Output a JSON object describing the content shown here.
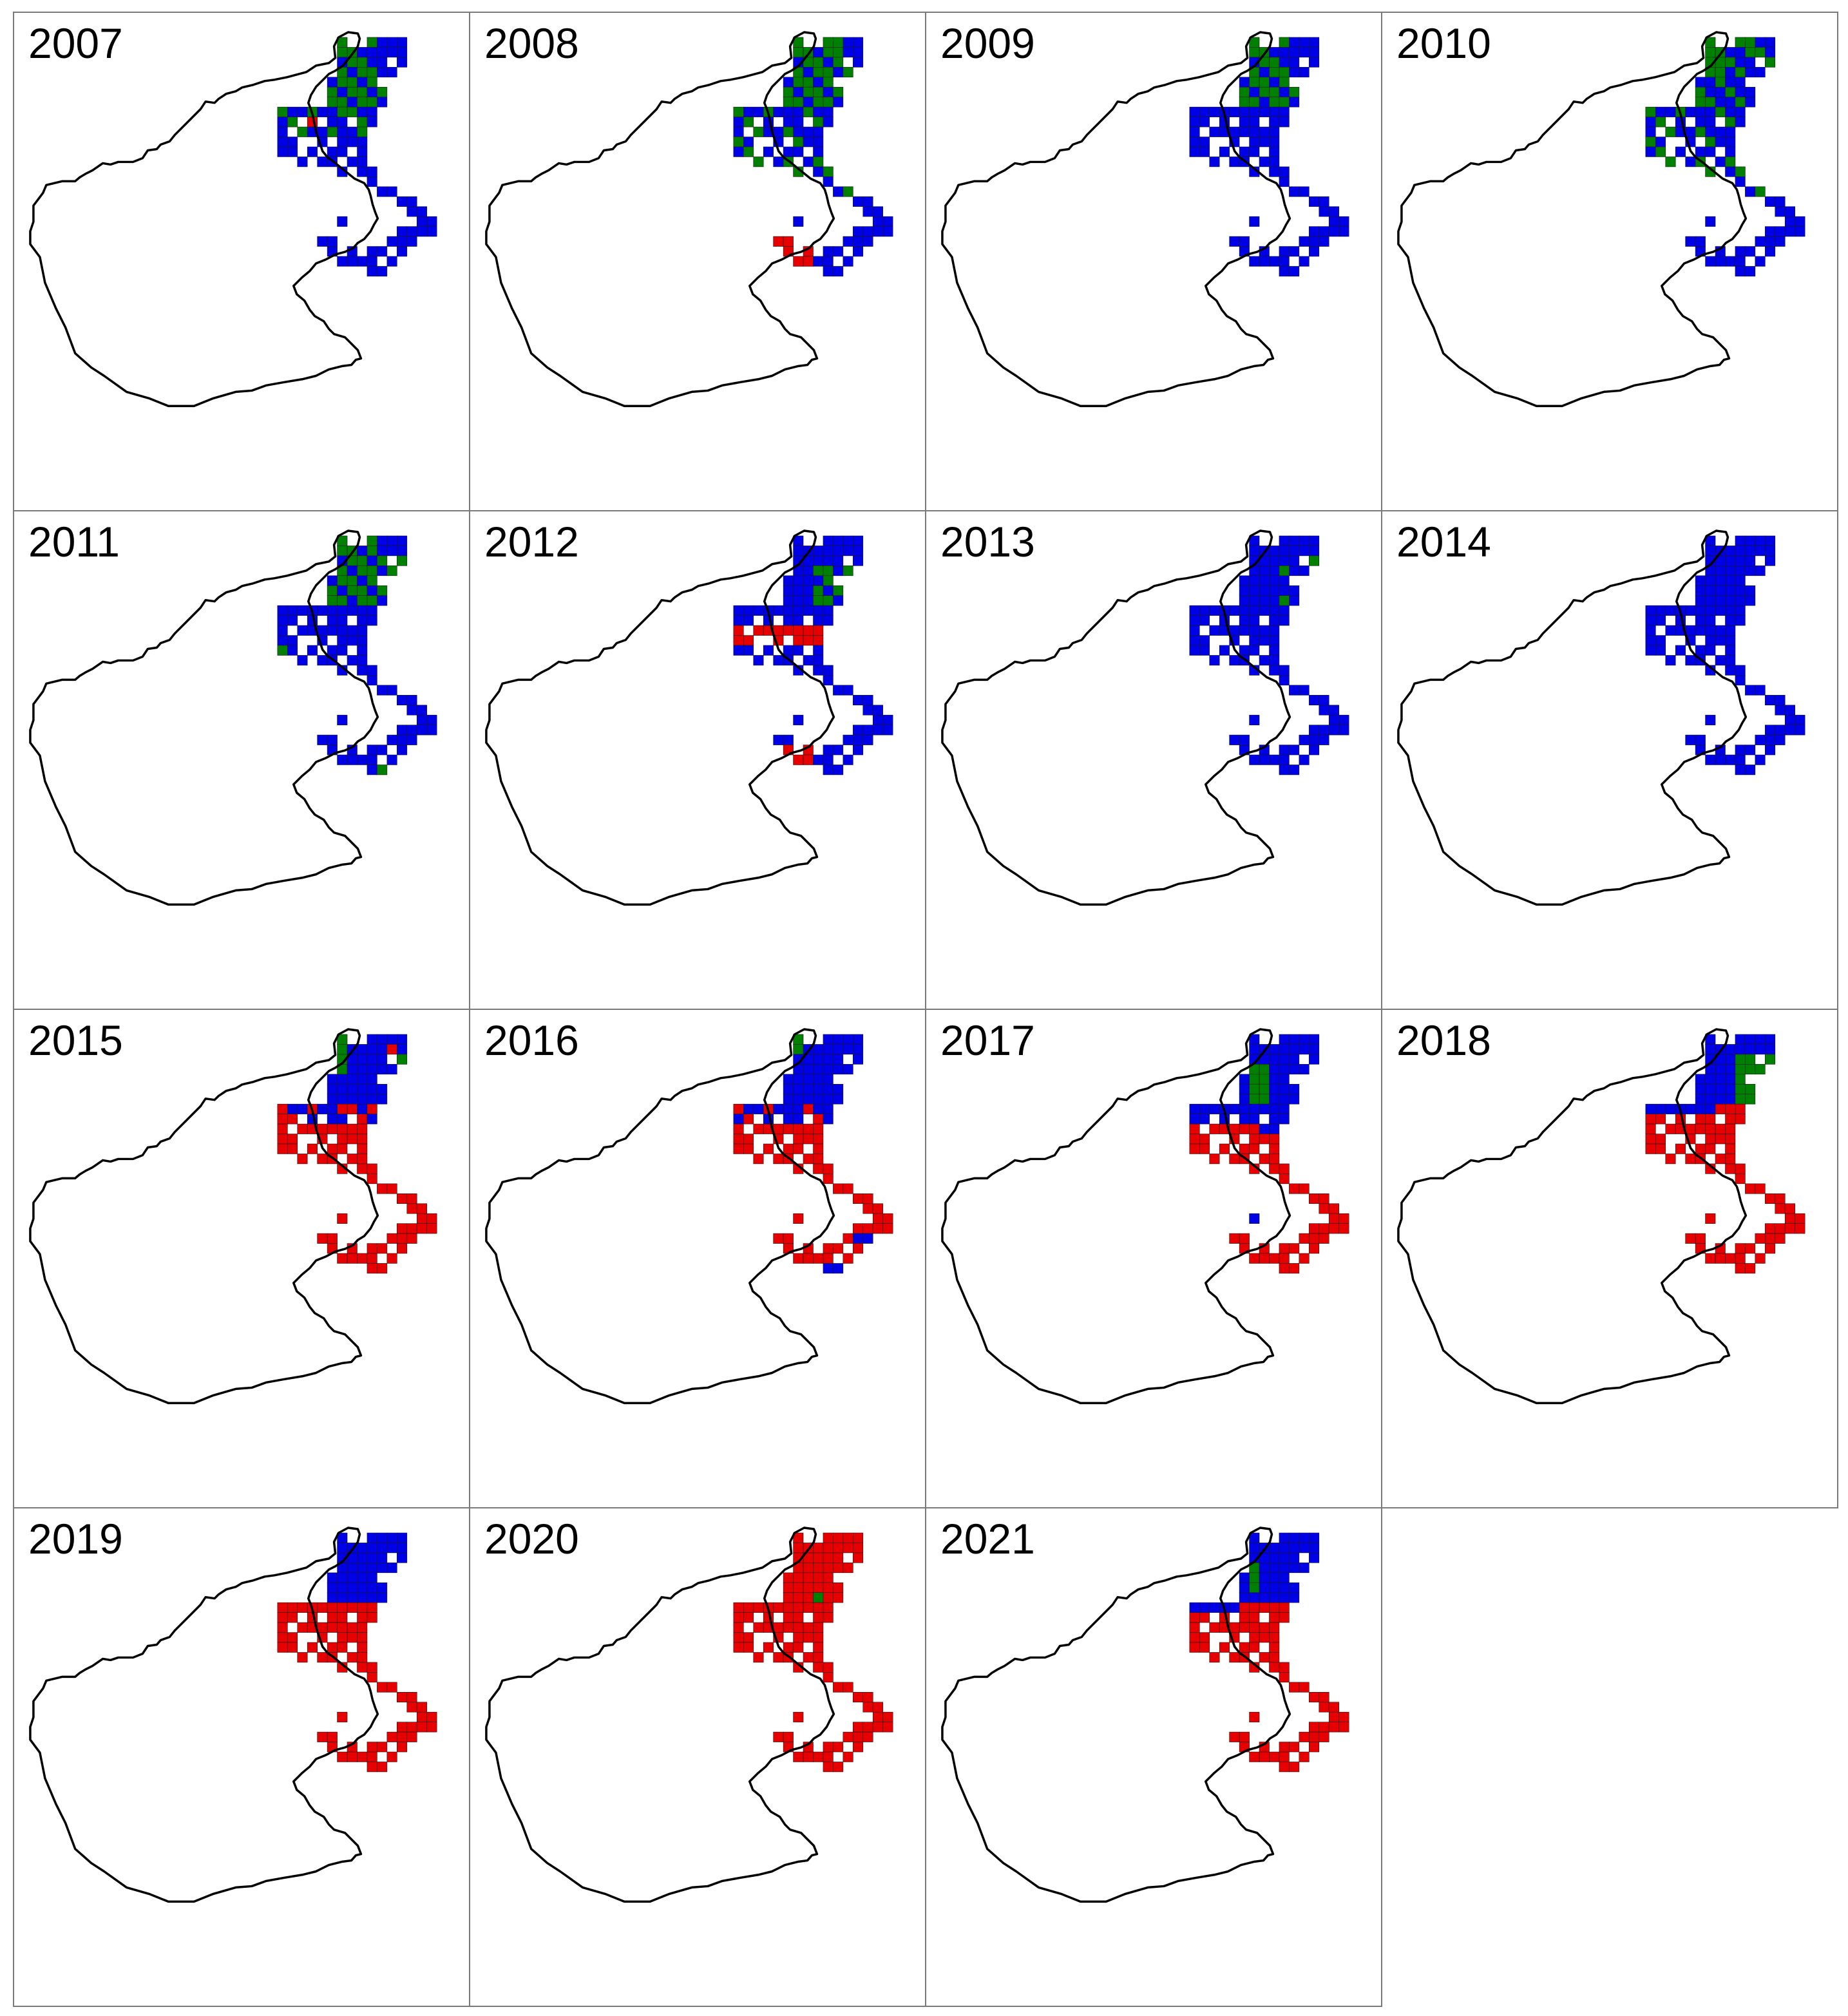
{
  "figure": {
    "panels": [
      {
        "year": "2007",
        "pattern": "p2007"
      },
      {
        "year": "2008",
        "pattern": "p2008"
      },
      {
        "year": "2009",
        "pattern": "p2009"
      },
      {
        "year": "2010",
        "pattern": "p2010"
      },
      {
        "year": "2011",
        "pattern": "p2011"
      },
      {
        "year": "2012",
        "pattern": "p2012"
      },
      {
        "year": "2013",
        "pattern": "p2013"
      },
      {
        "year": "2014",
        "pattern": "p2014"
      },
      {
        "year": "2015",
        "pattern": "p2015"
      },
      {
        "year": "2016",
        "pattern": "p2016"
      },
      {
        "year": "2017",
        "pattern": "p2017"
      },
      {
        "year": "2018",
        "pattern": "p2018"
      },
      {
        "year": "2019",
        "pattern": "p2019"
      },
      {
        "year": "2020",
        "pattern": "p2020"
      },
      {
        "year": "2021",
        "pattern": "p2021"
      }
    ],
    "colors": {
      "blue": "#0000e6",
      "green": "#008000",
      "red": "#e60000",
      "outline": "#000000",
      "panel_border": "#7a7a7a"
    }
  }
}
